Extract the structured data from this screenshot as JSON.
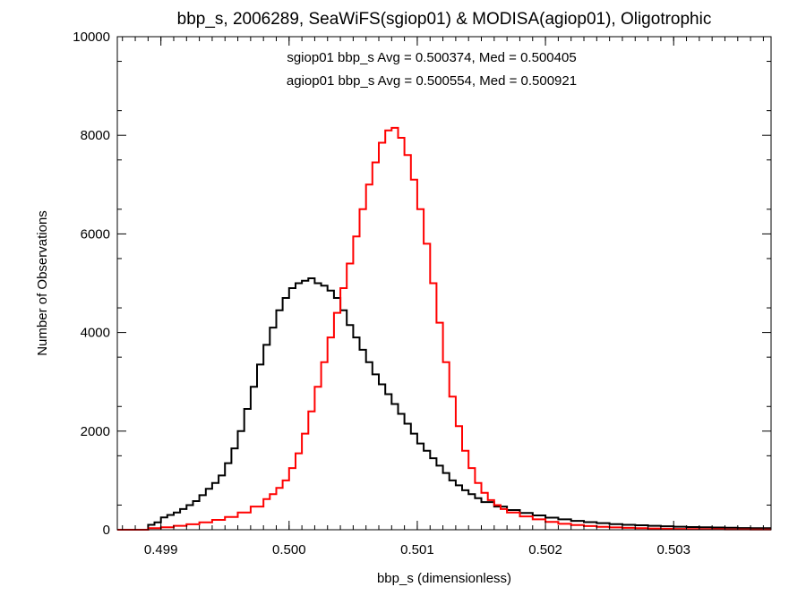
{
  "chart_data": {
    "type": "line",
    "title": "bbp_s, 2006289, SeaWiFS(sgiop01) & MODISA(agiop01), Oligotrophic",
    "xlabel": "bbp_s (dimensionless)",
    "ylabel": "Number of Observations",
    "xlim": [
      0.49866,
      0.50376
    ],
    "ylim": [
      0,
      10000
    ],
    "xticks": [
      0.499,
      0.5,
      0.501,
      0.502,
      0.503
    ],
    "xtick_labels": [
      "0.499",
      "0.500",
      "0.501",
      "0.502",
      "0.503"
    ],
    "yticks": [
      0,
      2000,
      4000,
      6000,
      8000,
      10000
    ],
    "ytick_labels": [
      "0",
      "2000",
      "4000",
      "6000",
      "8000",
      "10000"
    ],
    "grid": false,
    "legend": "none",
    "annotations": [
      {
        "text": "sgiop01 bbp_s Avg = 0.500374, Med = 0.500405",
        "color": "#000000"
      },
      {
        "text": "agiop01 bbp_s Avg = 0.500554, Med = 0.500921",
        "color": "#ff0000"
      }
    ],
    "series": [
      {
        "color": "#000000",
        "style": "step",
        "x": [
          0.49866,
          0.4989,
          0.49895,
          0.499,
          0.49905,
          0.4991,
          0.49915,
          0.4992,
          0.49925,
          0.4993,
          0.49935,
          0.4994,
          0.49945,
          0.4995,
          0.49955,
          0.4996,
          0.49965,
          0.4997,
          0.49975,
          0.4998,
          0.49985,
          0.4999,
          0.49995,
          0.5,
          0.50005,
          0.5001,
          0.50015,
          0.5002,
          0.50025,
          0.5003,
          0.50035,
          0.5004,
          0.50045,
          0.5005,
          0.50055,
          0.5006,
          0.50065,
          0.5007,
          0.50075,
          0.5008,
          0.50085,
          0.5009,
          0.50095,
          0.501,
          0.50105,
          0.5011,
          0.50115,
          0.5012,
          0.50125,
          0.5013,
          0.50135,
          0.5014,
          0.50145,
          0.5015,
          0.5016,
          0.5017,
          0.5018,
          0.5019,
          0.502,
          0.5021,
          0.5022,
          0.5023,
          0.5024,
          0.5025,
          0.5026,
          0.5027,
          0.5028,
          0.5029,
          0.503,
          0.5031,
          0.5032,
          0.5033,
          0.5034,
          0.5035,
          0.5036,
          0.5037,
          0.50376
        ],
        "y": [
          0,
          100,
          150,
          250,
          300,
          350,
          420,
          500,
          580,
          700,
          830,
          950,
          1100,
          1350,
          1650,
          2000,
          2450,
          2900,
          3350,
          3750,
          4100,
          4450,
          4700,
          4900,
          5000,
          5050,
          5100,
          5000,
          4950,
          4850,
          4700,
          4450,
          4150,
          3900,
          3650,
          3400,
          3150,
          2950,
          2750,
          2550,
          2350,
          2150,
          1950,
          1750,
          1600,
          1450,
          1300,
          1150,
          1000,
          900,
          800,
          720,
          640,
          560,
          470,
          400,
          340,
          290,
          245,
          210,
          180,
          155,
          135,
          115,
          100,
          90,
          80,
          70,
          62,
          55,
          50,
          45,
          40,
          35,
          32,
          30,
          30
        ]
      },
      {
        "color": "#ff0000",
        "style": "step",
        "x": [
          0.49866,
          0.4989,
          0.499,
          0.4991,
          0.4992,
          0.4993,
          0.4994,
          0.4995,
          0.4996,
          0.4997,
          0.4998,
          0.49985,
          0.4999,
          0.49995,
          0.5,
          0.50005,
          0.5001,
          0.50015,
          0.5002,
          0.50025,
          0.5003,
          0.50035,
          0.5004,
          0.50045,
          0.5005,
          0.50055,
          0.5006,
          0.50065,
          0.5007,
          0.50075,
          0.5008,
          0.50085,
          0.5009,
          0.50095,
          0.501,
          0.50105,
          0.5011,
          0.50115,
          0.5012,
          0.50125,
          0.5013,
          0.50135,
          0.5014,
          0.50145,
          0.5015,
          0.50155,
          0.5016,
          0.50165,
          0.5017,
          0.5018,
          0.5019,
          0.502,
          0.5021,
          0.5022,
          0.5023,
          0.5024,
          0.5025,
          0.5026,
          0.5027,
          0.5028,
          0.5029,
          0.503,
          0.5031,
          0.5032,
          0.5034,
          0.5036,
          0.50376
        ],
        "y": [
          0,
          30,
          50,
          80,
          110,
          150,
          200,
          260,
          350,
          470,
          620,
          720,
          850,
          1000,
          1250,
          1550,
          1950,
          2400,
          2900,
          3400,
          3900,
          4400,
          4900,
          5400,
          5950,
          6500,
          7000,
          7450,
          7850,
          8100,
          8150,
          7950,
          7600,
          7100,
          6500,
          5800,
          5000,
          4200,
          3400,
          2700,
          2100,
          1600,
          1250,
          950,
          750,
          600,
          500,
          420,
          350,
          270,
          210,
          160,
          120,
          95,
          75,
          60,
          48,
          38,
          30,
          25,
          20,
          16,
          13,
          10,
          8,
          6,
          5
        ]
      }
    ]
  }
}
